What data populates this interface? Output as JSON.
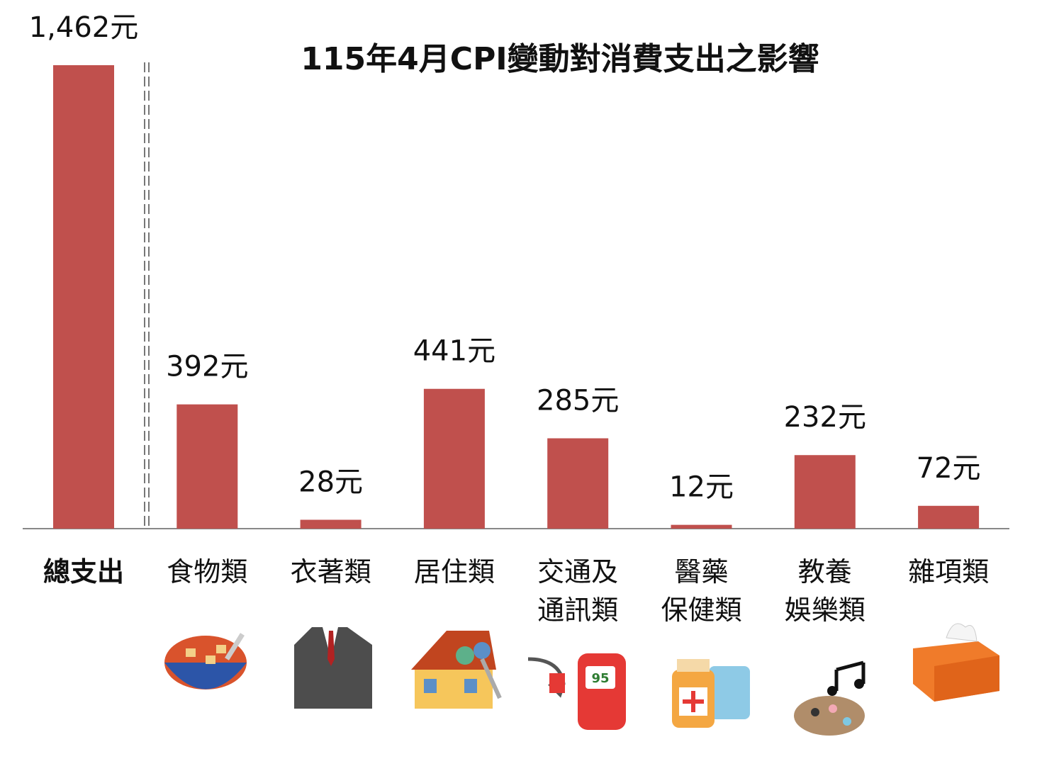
{
  "chart_data": {
    "type": "bar",
    "title": "115年4月CPI變動對消費支出之影響",
    "categories": [
      "總支出",
      "食物類",
      "衣著類",
      "居住類",
      "交通及\n通訊類",
      "醫藥\n保健類",
      "教養\n娛樂類",
      "雜項類"
    ],
    "values": [
      1462,
      392,
      28,
      441,
      285,
      12,
      232,
      72
    ],
    "value_labels": [
      "1,462元",
      "392元",
      "28元",
      "441元",
      "285元",
      "12元",
      "232元",
      "72元"
    ],
    "color": "#c0504d"
  }
}
